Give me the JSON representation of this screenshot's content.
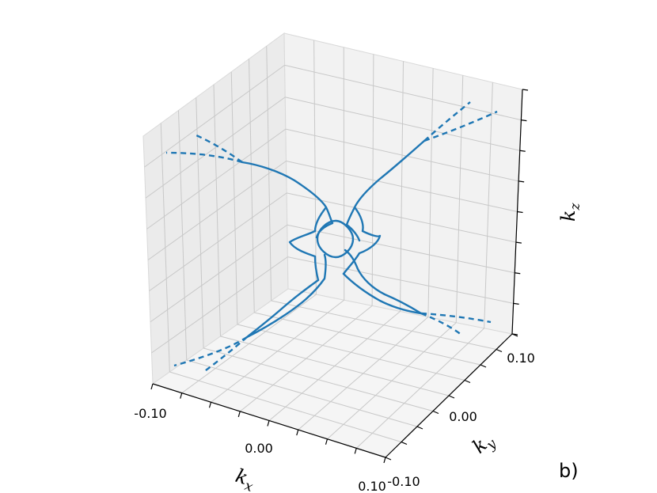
{
  "chart_data": {
    "type": "line",
    "title": "",
    "xlabel": "k",
    "xlabel_sub": "x",
    "ylabel": "k",
    "ylabel_sub": "y",
    "zlabel": "k",
    "zlabel_sub": "z",
    "panel_label": "b)",
    "x_ticks": [
      "-0.10",
      "0.00",
      "0.10"
    ],
    "y_ticks": [
      "0.10",
      "0.00",
      "-0.10"
    ],
    "xlim": [
      -0.1,
      0.1
    ],
    "ylim": [
      -0.1,
      0.1
    ],
    "grid": true,
    "colors": {
      "series": "#1f77b4",
      "pane": "#f2f2f2",
      "grid": "#c8c8c8"
    }
  }
}
